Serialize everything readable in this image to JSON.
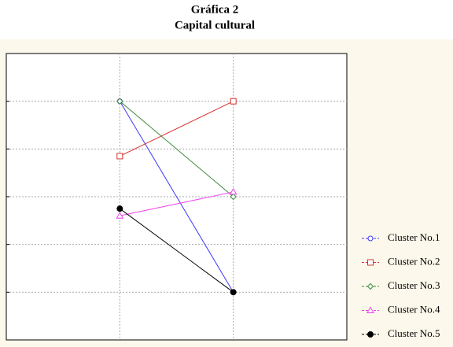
{
  "chart_data": {
    "type": "line",
    "title": "Gráfica 2",
    "subtitle": "Capital cultural",
    "categories": [
      null,
      null
    ],
    "series": [
      {
        "name": "Cluster No.1",
        "color": "#3a3aff",
        "marker": "circle",
        "values": [
          5,
          1
        ]
      },
      {
        "name": "Cluster No.2",
        "color": "#d83030",
        "marker": "square",
        "values": [
          3.85,
          5
        ]
      },
      {
        "name": "Cluster No.3",
        "color": "#3a8a3a",
        "marker": "diamond",
        "values": [
          5,
          3
        ]
      },
      {
        "name": "Cluster No.4",
        "color": "#f040f0",
        "marker": "triangle",
        "values": [
          2.6,
          3.1
        ]
      },
      {
        "name": "Cluster No.5",
        "color": "#000000",
        "marker": "filled-circle",
        "values": [
          2.75,
          1
        ]
      }
    ],
    "ylim": [
      0,
      6
    ],
    "yticks": [
      1,
      2,
      3,
      4,
      5
    ],
    "grid": true,
    "legend": "lower-right"
  }
}
